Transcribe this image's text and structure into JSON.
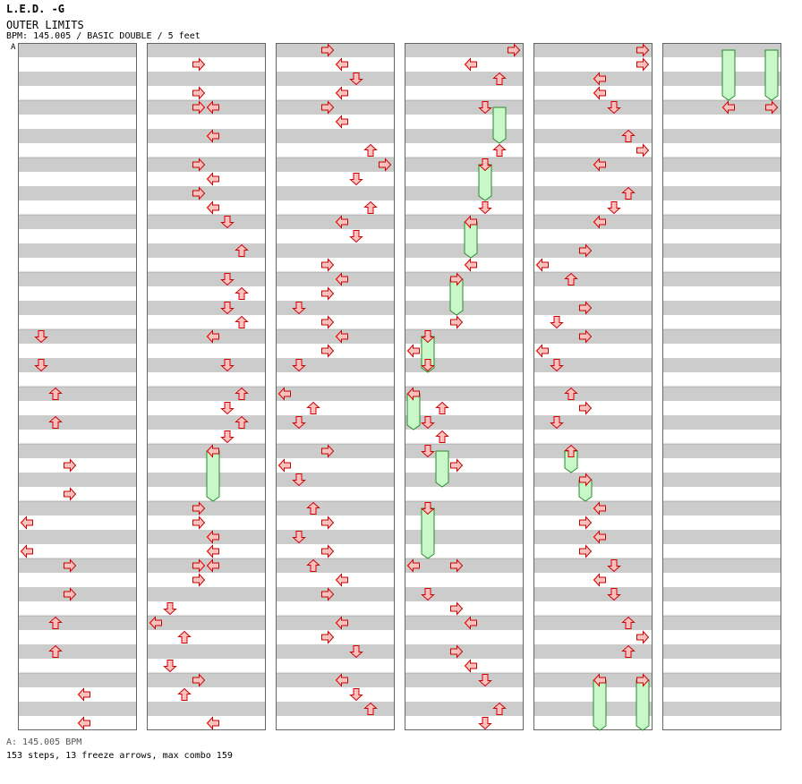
{
  "header": {
    "song_title": "L.E.D. -G",
    "subtitle": "OUTER LIMITS",
    "info": "BPM: 145.005 / BASIC DOUBLE / 5 feet",
    "marker": "A"
  },
  "footer": {
    "bpm_note": "A: 145.005 BPM",
    "stats": "153 steps, 13 freeze arrows, max combo 159"
  },
  "colors": {
    "stripe_gray": "#cccccc",
    "arrow_fill": "#ffc0c0",
    "arrow_stroke": "#cc0000",
    "freeze_fill": "#c8f7c8",
    "freeze_stroke": "#2a8a2a"
  },
  "chart_data": {
    "type": "step-chart",
    "style": "BASIC DOUBLE",
    "lanes": [
      "L",
      "D",
      "U",
      "R",
      "L",
      "D",
      "U",
      "R"
    ],
    "columns": 6,
    "measures_per_column": 12,
    "rows_per_measure": 4,
    "arrows_note": "each arrow: [column, row (quarter-beat index from column top), lane]",
    "arrows": [
      [
        0,
        20,
        1
      ],
      [
        0,
        22,
        1
      ],
      [
        0,
        24,
        2
      ],
      [
        0,
        26,
        2
      ],
      [
        0,
        29,
        3
      ],
      [
        0,
        31,
        3
      ],
      [
        0,
        33,
        0
      ],
      [
        0,
        35,
        0
      ],
      [
        0,
        36,
        3
      ],
      [
        0,
        38,
        3
      ],
      [
        0,
        40,
        2
      ],
      [
        0,
        42,
        2
      ],
      [
        0,
        45,
        4
      ],
      [
        0,
        47,
        4
      ],
      [
        1,
        1,
        3
      ],
      [
        1,
        3,
        3
      ],
      [
        1,
        4,
        3
      ],
      [
        1,
        4,
        4
      ],
      [
        1,
        6,
        4
      ],
      [
        1,
        8,
        3
      ],
      [
        1,
        9,
        4
      ],
      [
        1,
        10,
        3
      ],
      [
        1,
        11,
        4
      ],
      [
        1,
        12,
        5
      ],
      [
        1,
        14,
        6
      ],
      [
        1,
        16,
        5
      ],
      [
        1,
        17,
        6
      ],
      [
        1,
        18,
        5
      ],
      [
        1,
        19,
        6
      ],
      [
        1,
        20,
        4
      ],
      [
        1,
        22,
        5
      ],
      [
        1,
        24,
        6
      ],
      [
        1,
        25,
        5
      ],
      [
        1,
        26,
        6
      ],
      [
        1,
        27,
        5
      ],
      [
        1,
        28,
        4
      ],
      [
        1,
        32,
        3
      ],
      [
        1,
        33,
        3
      ],
      [
        1,
        34,
        4
      ],
      [
        1,
        35,
        4
      ],
      [
        1,
        36,
        3
      ],
      [
        1,
        36,
        4
      ],
      [
        1,
        37,
        3
      ],
      [
        1,
        39,
        1
      ],
      [
        1,
        40,
        0
      ],
      [
        1,
        41,
        2
      ],
      [
        1,
        43,
        1
      ],
      [
        1,
        44,
        3
      ],
      [
        1,
        45,
        2
      ],
      [
        1,
        47,
        4
      ],
      [
        2,
        0,
        3
      ],
      [
        2,
        1,
        4
      ],
      [
        2,
        2,
        5
      ],
      [
        2,
        3,
        4
      ],
      [
        2,
        4,
        3
      ],
      [
        2,
        5,
        4
      ],
      [
        2,
        7,
        6
      ],
      [
        2,
        8,
        7
      ],
      [
        2,
        9,
        5
      ],
      [
        2,
        11,
        6
      ],
      [
        2,
        12,
        4
      ],
      [
        2,
        13,
        5
      ],
      [
        2,
        15,
        3
      ],
      [
        2,
        16,
        4
      ],
      [
        2,
        17,
        3
      ],
      [
        2,
        18,
        1
      ],
      [
        2,
        19,
        3
      ],
      [
        2,
        20,
        4
      ],
      [
        2,
        21,
        3
      ],
      [
        2,
        22,
        1
      ],
      [
        2,
        24,
        0
      ],
      [
        2,
        25,
        2
      ],
      [
        2,
        26,
        1
      ],
      [
        2,
        28,
        3
      ],
      [
        2,
        29,
        0
      ],
      [
        2,
        30,
        1
      ],
      [
        2,
        32,
        2
      ],
      [
        2,
        33,
        3
      ],
      [
        2,
        34,
        1
      ],
      [
        2,
        35,
        3
      ],
      [
        2,
        36,
        2
      ],
      [
        2,
        37,
        4
      ],
      [
        2,
        38,
        3
      ],
      [
        2,
        40,
        4
      ],
      [
        2,
        41,
        3
      ],
      [
        2,
        42,
        5
      ],
      [
        2,
        44,
        4
      ],
      [
        2,
        45,
        5
      ],
      [
        2,
        46,
        6
      ],
      [
        3,
        0,
        7
      ],
      [
        3,
        1,
        4
      ],
      [
        3,
        2,
        6
      ],
      [
        3,
        4,
        5
      ],
      [
        3,
        7,
        6
      ],
      [
        3,
        8,
        5
      ],
      [
        3,
        11,
        5
      ],
      [
        3,
        12,
        4
      ],
      [
        3,
        15,
        4
      ],
      [
        3,
        16,
        3
      ],
      [
        3,
        19,
        3
      ],
      [
        3,
        20,
        1
      ],
      [
        3,
        21,
        0
      ],
      [
        3,
        22,
        1
      ],
      [
        3,
        24,
        0
      ],
      [
        3,
        25,
        2
      ],
      [
        3,
        26,
        1
      ],
      [
        3,
        27,
        2
      ],
      [
        3,
        28,
        1
      ],
      [
        3,
        29,
        3
      ],
      [
        3,
        32,
        1
      ],
      [
        3,
        36,
        0
      ],
      [
        3,
        36,
        3
      ],
      [
        3,
        38,
        1
      ],
      [
        3,
        39,
        3
      ],
      [
        3,
        40,
        4
      ],
      [
        3,
        42,
        3
      ],
      [
        3,
        43,
        4
      ],
      [
        3,
        44,
        5
      ],
      [
        3,
        46,
        6
      ],
      [
        3,
        47,
        5
      ],
      [
        4,
        0,
        7
      ],
      [
        4,
        1,
        7
      ],
      [
        4,
        2,
        4
      ],
      [
        4,
        3,
        4
      ],
      [
        4,
        4,
        5
      ],
      [
        4,
        6,
        6
      ],
      [
        4,
        7,
        7
      ],
      [
        4,
        8,
        4
      ],
      [
        4,
        10,
        6
      ],
      [
        4,
        11,
        5
      ],
      [
        4,
        12,
        4
      ],
      [
        4,
        14,
        3
      ],
      [
        4,
        15,
        0
      ],
      [
        4,
        16,
        2
      ],
      [
        4,
        18,
        3
      ],
      [
        4,
        19,
        1
      ],
      [
        4,
        20,
        3
      ],
      [
        4,
        21,
        0
      ],
      [
        4,
        22,
        1
      ],
      [
        4,
        24,
        2
      ],
      [
        4,
        25,
        3
      ],
      [
        4,
        26,
        1
      ],
      [
        4,
        28,
        2
      ],
      [
        4,
        30,
        3
      ],
      [
        4,
        32,
        4
      ],
      [
        4,
        33,
        3
      ],
      [
        4,
        34,
        4
      ],
      [
        4,
        35,
        3
      ],
      [
        4,
        36,
        5
      ],
      [
        4,
        37,
        4
      ],
      [
        4,
        38,
        5
      ],
      [
        4,
        40,
        6
      ],
      [
        4,
        41,
        7
      ],
      [
        4,
        42,
        6
      ],
      [
        4,
        44,
        4
      ],
      [
        4,
        44,
        7
      ],
      [
        5,
        4,
        4
      ],
      [
        5,
        4,
        7
      ]
    ],
    "freezes_note": "each freeze: [column, start row, end row, lane]",
    "freezes": [
      [
        1,
        28,
        31,
        4
      ],
      [
        3,
        4,
        6,
        6
      ],
      [
        3,
        8,
        10,
        5
      ],
      [
        3,
        12,
        14,
        4
      ],
      [
        3,
        16,
        18,
        3
      ],
      [
        3,
        20,
        22,
        1
      ],
      [
        3,
        24,
        26,
        0
      ],
      [
        3,
        28,
        30,
        2
      ],
      [
        3,
        32,
        35,
        1
      ],
      [
        4,
        28,
        29,
        2
      ],
      [
        4,
        30,
        31,
        3
      ],
      [
        4,
        44,
        47,
        4
      ],
      [
        4,
        44,
        47,
        7
      ],
      [
        5,
        0,
        3,
        4
      ],
      [
        5,
        0,
        3,
        7
      ]
    ]
  }
}
